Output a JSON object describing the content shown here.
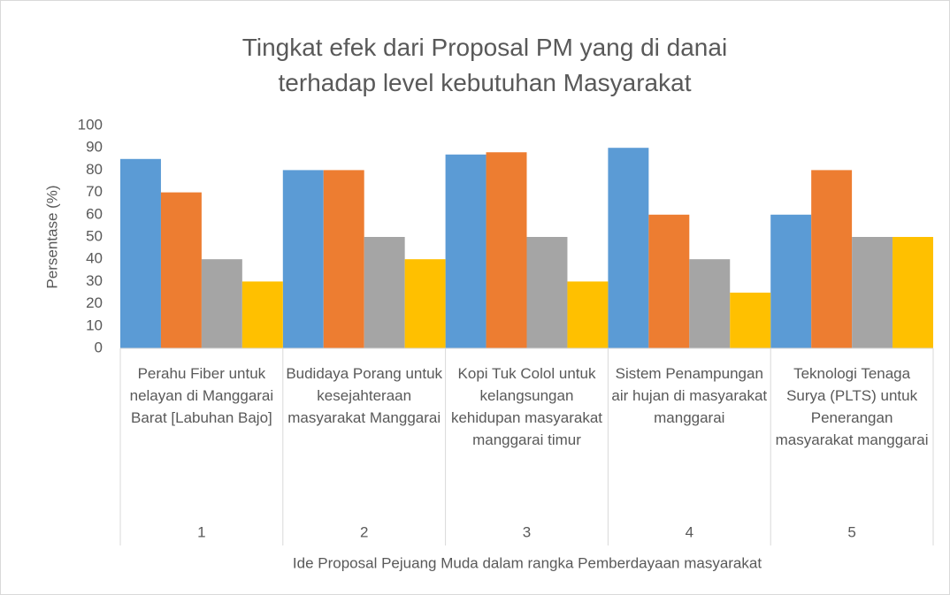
{
  "chart_data": {
    "type": "bar",
    "title": "Tingkat efek dari Proposal PM yang di danai terhadap level kebutuhan Masyarakat",
    "categories": [
      "Perahu Fiber untuk nelayan di Manggarai Barat [Labuhan Bajo]",
      "Budidaya Porang untuk kesejahteraan masyarakat Manggarai",
      "Kopi Tuk Colol untuk kelangsungan kehidupan masyarakat manggarai timur",
      "Sistem Penampungan air hujan di masyarakat manggarai",
      "Teknologi Tenaga Surya (PLTS) untuk Penerangan masyarakat manggarai"
    ],
    "category_groups": [
      "1",
      "2",
      "3",
      "4",
      "5"
    ],
    "series": [
      {
        "color": "#5b9bd5",
        "values": [
          85,
          80,
          87,
          90,
          60
        ]
      },
      {
        "color": "#ed7d31",
        "values": [
          70,
          80,
          88,
          60,
          80
        ]
      },
      {
        "color": "#a5a5a5",
        "values": [
          40,
          50,
          50,
          40,
          50
        ]
      },
      {
        "color": "#ffc000",
        "values": [
          30,
          40,
          30,
          25,
          50
        ]
      }
    ],
    "xlabel": "Ide Proposal Pejuang Muda dalam rangka Pemberdayaan masyarakat",
    "ylabel": "Persentase (%)",
    "ylim": [
      0,
      100
    ],
    "yticks": [
      0,
      10,
      20,
      30,
      40,
      50,
      60,
      70,
      80,
      90,
      100
    ],
    "grid": false
  }
}
